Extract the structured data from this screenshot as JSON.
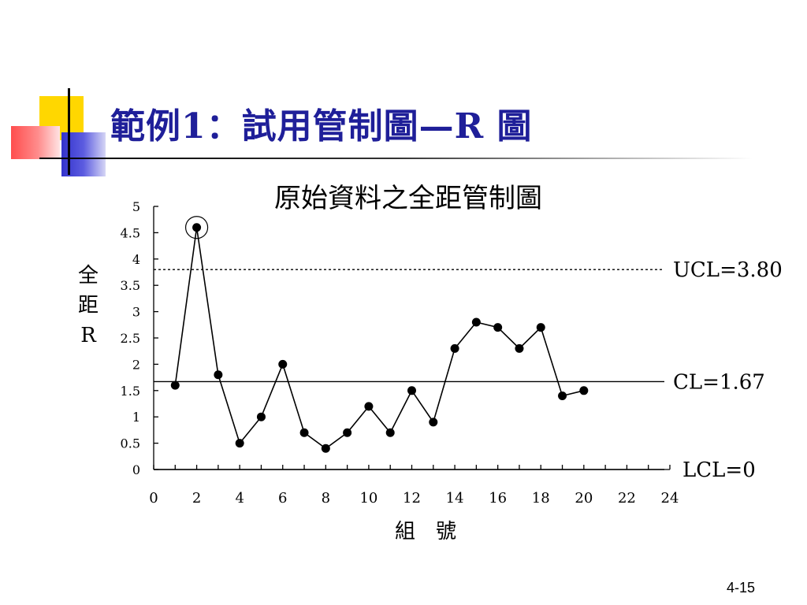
{
  "slide": {
    "title": "範例1：試用管制圖—R 圖",
    "page_number": "4-15"
  },
  "chart_data": {
    "type": "line",
    "title": "原始資料之全距管制圖",
    "xlabel": "組　號",
    "ylabel_lines": [
      "全",
      "距",
      "R"
    ],
    "xlim": [
      0,
      24
    ],
    "ylim": [
      0,
      5
    ],
    "x_ticks": [
      0,
      2,
      4,
      6,
      8,
      10,
      12,
      14,
      16,
      18,
      20,
      22,
      24
    ],
    "y_ticks": [
      "0",
      "0.5",
      "1",
      "1.5",
      "2",
      "2.5",
      "3",
      "3.5",
      "4",
      "4.5",
      "5"
    ],
    "x": [
      1,
      2,
      3,
      4,
      5,
      6,
      7,
      8,
      9,
      10,
      11,
      12,
      13,
      14,
      15,
      16,
      17,
      18,
      19,
      20
    ],
    "y": [
      1.6,
      4.6,
      1.8,
      0.5,
      1.0,
      2.0,
      0.7,
      0.4,
      0.7,
      1.2,
      0.7,
      1.5,
      0.9,
      2.3,
      2.8,
      2.7,
      2.3,
      2.7,
      1.4,
      1.5
    ],
    "highlighted_point_index": 1,
    "control_lines": [
      {
        "label": "UCL=3.80",
        "value": 3.8,
        "style": "dotted"
      },
      {
        "label": "CL=1.67",
        "value": 1.67,
        "style": "solid"
      },
      {
        "label": "LCL=0",
        "value": 0,
        "style": "solid"
      }
    ],
    "colors": {
      "line": "#000000",
      "marker": "#000000"
    }
  }
}
